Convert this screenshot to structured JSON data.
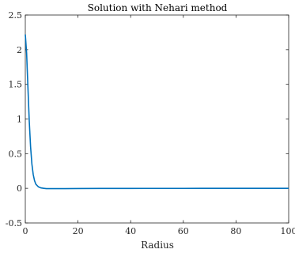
{
  "chart_data": {
    "type": "line",
    "title": "Solution with Nehari method",
    "xlabel": "Radius",
    "ylabel": "",
    "xlim": [
      0,
      100
    ],
    "ylim": [
      -0.5,
      2.5
    ],
    "xticks": [
      0,
      20,
      40,
      60,
      80,
      100
    ],
    "xtick_labels": [
      "0",
      "20",
      "40",
      "60",
      "80",
      "100"
    ],
    "yticks": [
      -0.5,
      0,
      0.5,
      1,
      1.5,
      2,
      2.5
    ],
    "ytick_labels": [
      "-0.5",
      "0",
      "0.5",
      "1",
      "1.5",
      "2",
      "2.5"
    ],
    "grid": false,
    "series": [
      {
        "color": "#0072BD",
        "x": [
          0,
          0.5,
          1,
          1.5,
          2,
          2.5,
          3,
          3.5,
          4,
          5,
          6,
          7,
          8,
          10,
          15,
          20,
          30,
          40,
          50,
          60,
          70,
          80,
          90,
          100
        ],
        "y": [
          2.22,
          1.95,
          1.45,
          0.97,
          0.6,
          0.35,
          0.2,
          0.11,
          0.06,
          0.02,
          0.005,
          0.0,
          -0.005,
          -0.005,
          -0.004,
          -0.003,
          -0.002,
          -0.002,
          -0.001,
          -0.001,
          0,
          0,
          0,
          0
        ]
      }
    ]
  }
}
